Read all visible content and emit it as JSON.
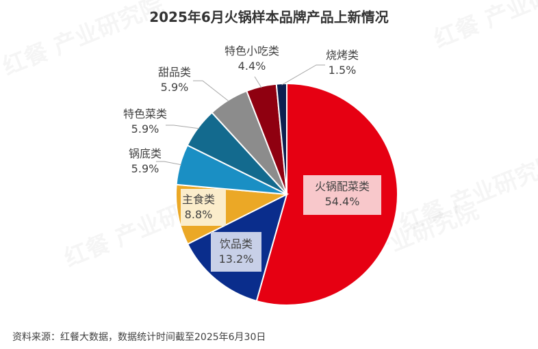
{
  "chart_data": {
    "type": "pie",
    "title": "2025年6月火锅样本品牌产品上新情况",
    "categories": [
      "火锅配菜类",
      "饮品类",
      "主食类",
      "锅底类",
      "特色菜类",
      "甜品类",
      "特色小吃类",
      "烧烤类"
    ],
    "values": [
      54.4,
      13.2,
      8.8,
      5.9,
      5.9,
      5.9,
      4.4,
      1.5
    ],
    "value_labels": [
      "54.4%",
      "13.2%",
      "8.8%",
      "5.9%",
      "5.9%",
      "5.9%",
      "4.4%",
      "1.5%"
    ],
    "colors": [
      "#e60012",
      "#0a2d8c",
      "#eba826",
      "#1a8fc4",
      "#136a8e",
      "#8c8c8c",
      "#8f0010",
      "#0d2050"
    ],
    "start": "12 o'clock",
    "direction": "clockwise"
  },
  "source_note": "资料来源：红餐大数据，数据统计时间截至2025年6月30日",
  "watermark": "红餐 产业研究院"
}
